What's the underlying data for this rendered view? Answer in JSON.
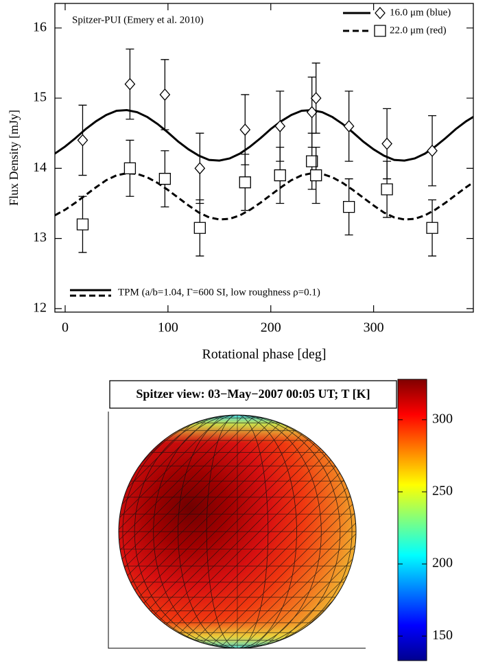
{
  "chart_data": [
    {
      "type": "scatter",
      "annotation": "Spitzer-PUI (Emery et al. 2010)",
      "xlabel": "Rotational phase [deg]",
      "ylabel": "Flux Density [mJy]",
      "xlim": [
        -10,
        397
      ],
      "ylim": [
        11.95,
        16.35
      ],
      "xticks": [
        0,
        100,
        200,
        300
      ],
      "yticks": [
        12,
        13,
        14,
        15,
        16
      ],
      "legend_position": "top-right",
      "model_label": "TPM (a/b=1.04, Γ=600 SI, low roughness ρ=0.1)",
      "model_x": [
        -10,
        0,
        10,
        20,
        30,
        40,
        50,
        60,
        70,
        80,
        90,
        100,
        110,
        120,
        130,
        140,
        150,
        160,
        170,
        180,
        190,
        200,
        210,
        220,
        230,
        240,
        250,
        260,
        270,
        280,
        290,
        300,
        310,
        320,
        330,
        340,
        350,
        360,
        370,
        380,
        390,
        400
      ],
      "series": [
        {
          "name": "16.0 μm (blue)",
          "color": "#000000",
          "marker": "diamond",
          "linestyle": "solid",
          "x": [
            17,
            63,
            97,
            131,
            175,
            209,
            240,
            244,
            276,
            313,
            357
          ],
          "values": [
            14.4,
            15.2,
            15.05,
            14.0,
            14.55,
            14.6,
            14.8,
            15.0,
            14.6,
            14.35,
            14.25
          ],
          "errors": [
            0.5,
            0.5,
            0.5,
            0.5,
            0.5,
            0.5,
            0.5,
            0.5,
            0.5,
            0.5,
            0.5
          ],
          "model_values": [
            14.21,
            14.31,
            14.43,
            14.56,
            14.67,
            14.76,
            14.82,
            14.83,
            14.8,
            14.73,
            14.63,
            14.51,
            14.38,
            14.27,
            14.18,
            14.12,
            14.11,
            14.14,
            14.21,
            14.31,
            14.43,
            14.56,
            14.67,
            14.76,
            14.82,
            14.83,
            14.8,
            14.73,
            14.63,
            14.51,
            14.38,
            14.27,
            14.18,
            14.12,
            14.11,
            14.14,
            14.21,
            14.31,
            14.43,
            14.56,
            14.67,
            14.76
          ]
        },
        {
          "name": "22.0 μm (red)",
          "color": "#000000",
          "marker": "square",
          "linestyle": "dashed",
          "x": [
            17,
            63,
            97,
            131,
            175,
            209,
            240,
            244,
            276,
            313,
            357
          ],
          "values": [
            13.2,
            14.0,
            13.85,
            13.15,
            13.8,
            13.9,
            14.1,
            13.9,
            13.45,
            13.7,
            13.15
          ],
          "errors": [
            0.4,
            0.4,
            0.4,
            0.4,
            0.4,
            0.4,
            0.4,
            0.4,
            0.4,
            0.4,
            0.4
          ],
          "model_values": [
            13.33,
            13.41,
            13.51,
            13.62,
            13.73,
            13.83,
            13.9,
            13.93,
            13.92,
            13.87,
            13.79,
            13.69,
            13.58,
            13.47,
            13.37,
            13.3,
            13.27,
            13.28,
            13.33,
            13.41,
            13.51,
            13.62,
            13.73,
            13.83,
            13.9,
            13.93,
            13.92,
            13.87,
            13.79,
            13.69,
            13.58,
            13.47,
            13.37,
            13.3,
            13.27,
            13.28,
            13.33,
            13.41,
            13.51,
            13.62,
            13.73,
            13.83
          ]
        }
      ]
    },
    {
      "type": "surface",
      "title": "Spitzer view: 03−May−2007 00:05 UT; T [K]",
      "colormap": "jet",
      "clim": [
        133,
        328
      ],
      "cticks": [
        150,
        200,
        250,
        300
      ]
    }
  ]
}
